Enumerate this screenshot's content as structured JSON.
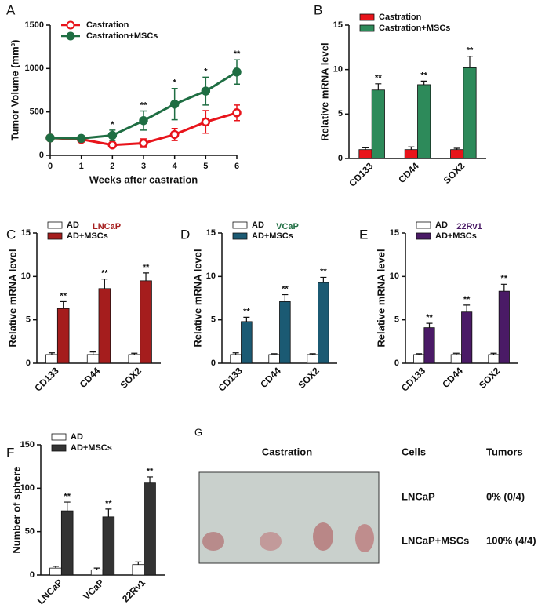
{
  "chart_data": [
    {
      "type": "line",
      "panel_label": "A",
      "xlabel": "Weeks after castration",
      "ylabel": "Tumor Volume (mm³)",
      "x": [
        0,
        1,
        2,
        3,
        4,
        5,
        6
      ],
      "xlim": [
        0,
        6
      ],
      "xticks": [
        0,
        1,
        2,
        3,
        4,
        5,
        6
      ],
      "ylim": [
        0,
        1500
      ],
      "yticks": [
        0,
        500,
        1000,
        1500
      ],
      "legend": "upper left",
      "series": [
        {
          "name": "Castration",
          "color": "#e8141b",
          "values": [
            200,
            185,
            120,
            140,
            240,
            385,
            490
          ],
          "errors": [
            20,
            20,
            25,
            50,
            70,
            130,
            90
          ],
          "significance": [
            null,
            null,
            null,
            null,
            null,
            null,
            null
          ]
        },
        {
          "name": "Castration+MSCs",
          "color": "#1f6e43",
          "values": [
            200,
            195,
            230,
            400,
            590,
            740,
            960
          ],
          "errors": [
            20,
            20,
            60,
            110,
            180,
            160,
            140
          ],
          "significance": [
            null,
            null,
            "*",
            "**",
            "*",
            "*",
            "**"
          ]
        }
      ]
    },
    {
      "type": "bar",
      "panel_label": "B",
      "ylabel": "Relative mRNA level",
      "categories": [
        "CD133",
        "CD44",
        "SOX2"
      ],
      "ylim": [
        0,
        15
      ],
      "yticks": [
        0,
        5,
        10,
        15
      ],
      "legend": "upper left",
      "series": [
        {
          "name": "Castration",
          "color": "#e8141b",
          "values": [
            1,
            1,
            1
          ],
          "errors": [
            0.2,
            0.3,
            0.15
          ],
          "significance": [
            null,
            null,
            null
          ]
        },
        {
          "name": "Castration+MSCs",
          "color": "#2d8a5a",
          "values": [
            7.7,
            8.3,
            10.2
          ],
          "errors": [
            0.7,
            0.4,
            1.3
          ],
          "significance": [
            "**",
            "**",
            "**"
          ]
        }
      ]
    },
    {
      "type": "bar",
      "panel_label": "C",
      "title": "LNCaP",
      "title_color": "#a51d1d",
      "ylabel": "Relative mRNA level",
      "categories": [
        "CD133",
        "CD44",
        "SOX2"
      ],
      "ylim": [
        0,
        15
      ],
      "yticks": [
        0,
        5,
        10,
        15
      ],
      "legend": "upper left",
      "series": [
        {
          "name": "AD",
          "color": "#ffffff",
          "values": [
            1,
            1,
            1
          ],
          "errors": [
            0.2,
            0.3,
            0.15
          ],
          "significance": [
            null,
            null,
            null
          ]
        },
        {
          "name": "AD+MSCs",
          "color": "#a51d1d",
          "values": [
            6.3,
            8.6,
            9.5
          ],
          "errors": [
            0.8,
            1.1,
            0.9
          ],
          "significance": [
            "**",
            "**",
            "**"
          ]
        }
      ]
    },
    {
      "type": "bar",
      "panel_label": "D",
      "title": "VCaP",
      "title_color": "#1f6e43",
      "ylabel": "Relative mRNA level",
      "categories": [
        "CD133",
        "CD44",
        "SOX2"
      ],
      "ylim": [
        0,
        15
      ],
      "yticks": [
        0,
        5,
        10,
        15
      ],
      "legend": "upper left",
      "series": [
        {
          "name": "AD",
          "color": "#ffffff",
          "values": [
            1,
            1,
            1
          ],
          "errors": [
            0.2,
            0.1,
            0.1
          ],
          "significance": [
            null,
            null,
            null
          ]
        },
        {
          "name": "AD+MSCs",
          "color": "#1b5a73",
          "values": [
            4.8,
            7.1,
            9.3
          ],
          "errors": [
            0.5,
            0.8,
            0.6
          ],
          "significance": [
            "**",
            "**",
            "**"
          ]
        }
      ]
    },
    {
      "type": "bar",
      "panel_label": "E",
      "title": "22Rv1",
      "title_color": "#4a1a66",
      "ylabel": "Relative mRNA level",
      "categories": [
        "CD133",
        "CD44",
        "SOX2"
      ],
      "ylim": [
        0,
        15
      ],
      "yticks": [
        0,
        5,
        10,
        15
      ],
      "legend": "upper left",
      "series": [
        {
          "name": "AD",
          "color": "#ffffff",
          "values": [
            1,
            1,
            1
          ],
          "errors": [
            0.1,
            0.15,
            0.15
          ],
          "significance": [
            null,
            null,
            null
          ]
        },
        {
          "name": "AD+MSCs",
          "color": "#4a1a66",
          "values": [
            4.1,
            5.9,
            8.3
          ],
          "errors": [
            0.5,
            0.8,
            0.8
          ],
          "significance": [
            "**",
            "**",
            "**"
          ]
        }
      ]
    },
    {
      "type": "bar",
      "panel_label": "F",
      "ylabel": "Number of sphere",
      "categories": [
        "LNCaP",
        "VCaP",
        "22Rv1"
      ],
      "ylim": [
        0,
        150
      ],
      "yticks": [
        0,
        50,
        100,
        150
      ],
      "legend": "upper left",
      "series": [
        {
          "name": "AD",
          "color": "#ffffff",
          "values": [
            8,
            6,
            12
          ],
          "errors": [
            2,
            2,
            3
          ],
          "significance": [
            null,
            null,
            null
          ]
        },
        {
          "name": "AD+MSCs",
          "color": "#333333",
          "values": [
            74,
            67,
            106
          ],
          "errors": [
            10,
            9,
            7
          ],
          "significance": [
            "**",
            "**",
            "**"
          ]
        }
      ]
    }
  ],
  "panel_g": {
    "panel_label": "G",
    "photo_title": "Castration",
    "headers": [
      "Cells",
      "Tumors"
    ],
    "rows": [
      [
        "LNCaP",
        "0% (0/4)"
      ],
      [
        "LNCaP+MSCs",
        "100% (4/4)"
      ]
    ]
  }
}
